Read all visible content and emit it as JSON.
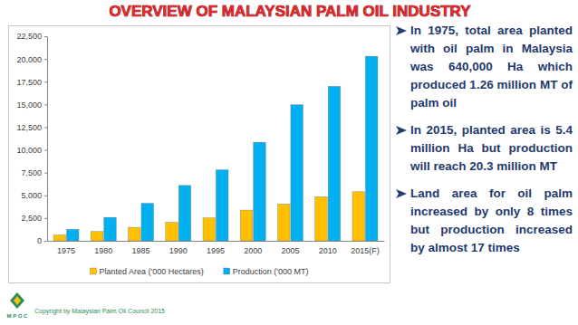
{
  "chart_data": {
    "type": "bar",
    "title": "OVERVIEW OF MALAYSIAN PALM OIL INDUSTRY",
    "categories": [
      "1975",
      "1980",
      "1985",
      "1990",
      "1995",
      "2000",
      "2005",
      "2010",
      "2015(F)"
    ],
    "series": [
      {
        "name": "Planted Area ('000 Hectares)",
        "color": "#ffc000",
        "values": [
          640,
          1020,
          1480,
          2030,
          2540,
          3380,
          4050,
          4850,
          5400
        ]
      },
      {
        "name": "Production ('000 MT)",
        "color": "#00b0f0",
        "values": [
          1260,
          2580,
          4130,
          6090,
          7810,
          10840,
          14960,
          16990,
          20300
        ]
      }
    ],
    "ylim": [
      0,
      22500
    ],
    "yticks": [
      0,
      {
        "value": 2500,
        "label": "2,500"
      },
      {
        "value": 5000,
        "label": "5,000"
      },
      {
        "value": 7500,
        "label": "7,500"
      },
      {
        "value": 10000,
        "label": "10,000"
      },
      {
        "value": 12500,
        "label": "12,500"
      },
      {
        "value": 15000,
        "label": "15,000"
      },
      {
        "value": 17500,
        "label": "17,500"
      },
      {
        "value": 20000,
        "label": "20,000"
      },
      {
        "value": 22500,
        "label": "22,500"
      }
    ],
    "grid": false,
    "legend": "bottom",
    "data_labels": false,
    "annotations": [
      "In 1975, total area planted with oil palm in Malaysia was 640,000 Ha which produced 1.26 million MT of palm oil",
      "In 2015, planted area is 5.4 million Ha but production will reach 20.3 million MT",
      "Land area for oil palm increased by only 8 times but production increased by almost 17 times"
    ]
  },
  "footer": {
    "copyright": "Copyright by Malaysian Palm Oil Council 2015",
    "logo": "M P O C"
  }
}
